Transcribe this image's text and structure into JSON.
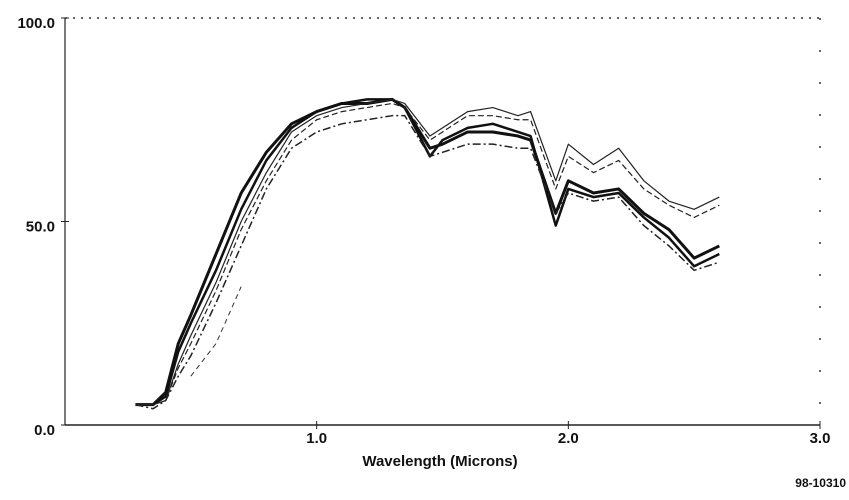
{
  "chart_data": {
    "type": "line",
    "x_label": "Wavelength (Microns)",
    "annotation": "98-10310",
    "x": [
      0.28,
      0.35,
      0.4,
      0.45,
      0.5,
      0.6,
      0.7,
      0.8,
      0.9,
      1.0,
      1.1,
      1.2,
      1.3,
      1.35,
      1.45,
      1.5,
      1.6,
      1.7,
      1.8,
      1.85,
      1.95,
      2.0,
      2.1,
      2.2,
      2.3,
      2.4,
      2.5,
      2.6
    ],
    "series": [
      {
        "color": "#111111",
        "values": [
          5,
          5,
          8,
          20,
          27,
          42,
          57,
          67,
          74,
          77,
          79,
          79,
          80,
          78,
          68,
          69,
          72,
          72,
          71,
          70,
          52,
          60,
          57,
          58,
          52,
          48,
          41,
          44
        ]
      },
      {
        "color": "#111111",
        "values": [
          5,
          5,
          7,
          18,
          25,
          38,
          53,
          65,
          73,
          77,
          79,
          80,
          80,
          78,
          66,
          70,
          73,
          74,
          72,
          71,
          49,
          58,
          56,
          57,
          51,
          46,
          39,
          42
        ]
      },
      {
        "color": "#222222",
        "values": [
          5,
          5,
          6,
          15,
          22,
          35,
          50,
          62,
          72,
          76,
          78,
          79,
          80,
          79,
          71,
          73,
          77,
          78,
          76,
          77,
          60,
          69,
          64,
          68,
          60,
          55,
          53,
          56
        ]
      },
      {
        "color": "#222222",
        "values": [
          5,
          5,
          6,
          14,
          20,
          33,
          48,
          60,
          70,
          75,
          77,
          78,
          79,
          78,
          70,
          72,
          76,
          76,
          75,
          75,
          58,
          66,
          62,
          65,
          58,
          54,
          51,
          54
        ]
      },
      {
        "color": "#222222",
        "values": [
          5,
          4,
          6,
          12,
          17,
          30,
          44,
          58,
          68,
          72,
          74,
          75,
          76,
          76,
          66,
          67,
          69,
          69,
          68,
          68,
          52,
          57,
          55,
          56,
          49,
          44,
          38,
          40
        ]
      },
      {
        "color": "#333333",
        "values": [
          null,
          null,
          null,
          null,
          12,
          20,
          34,
          null,
          null,
          null,
          null,
          null,
          null,
          null,
          null,
          null,
          null,
          null,
          null,
          null,
          null,
          null,
          null,
          null,
          null,
          null,
          null,
          null
        ]
      }
    ],
    "xlim": [
      0,
      3
    ],
    "xticks": [
      {
        "value": 1,
        "label": "1.0"
      },
      {
        "value": 2,
        "label": "2.0"
      },
      {
        "value": 3,
        "label": "3.0"
      }
    ],
    "ylim": [
      0,
      100
    ],
    "yticks": [
      {
        "value": 0,
        "label": "0.0"
      },
      {
        "value": 50,
        "label": "50.0"
      },
      {
        "value": 100,
        "label": "100.0"
      }
    ]
  }
}
